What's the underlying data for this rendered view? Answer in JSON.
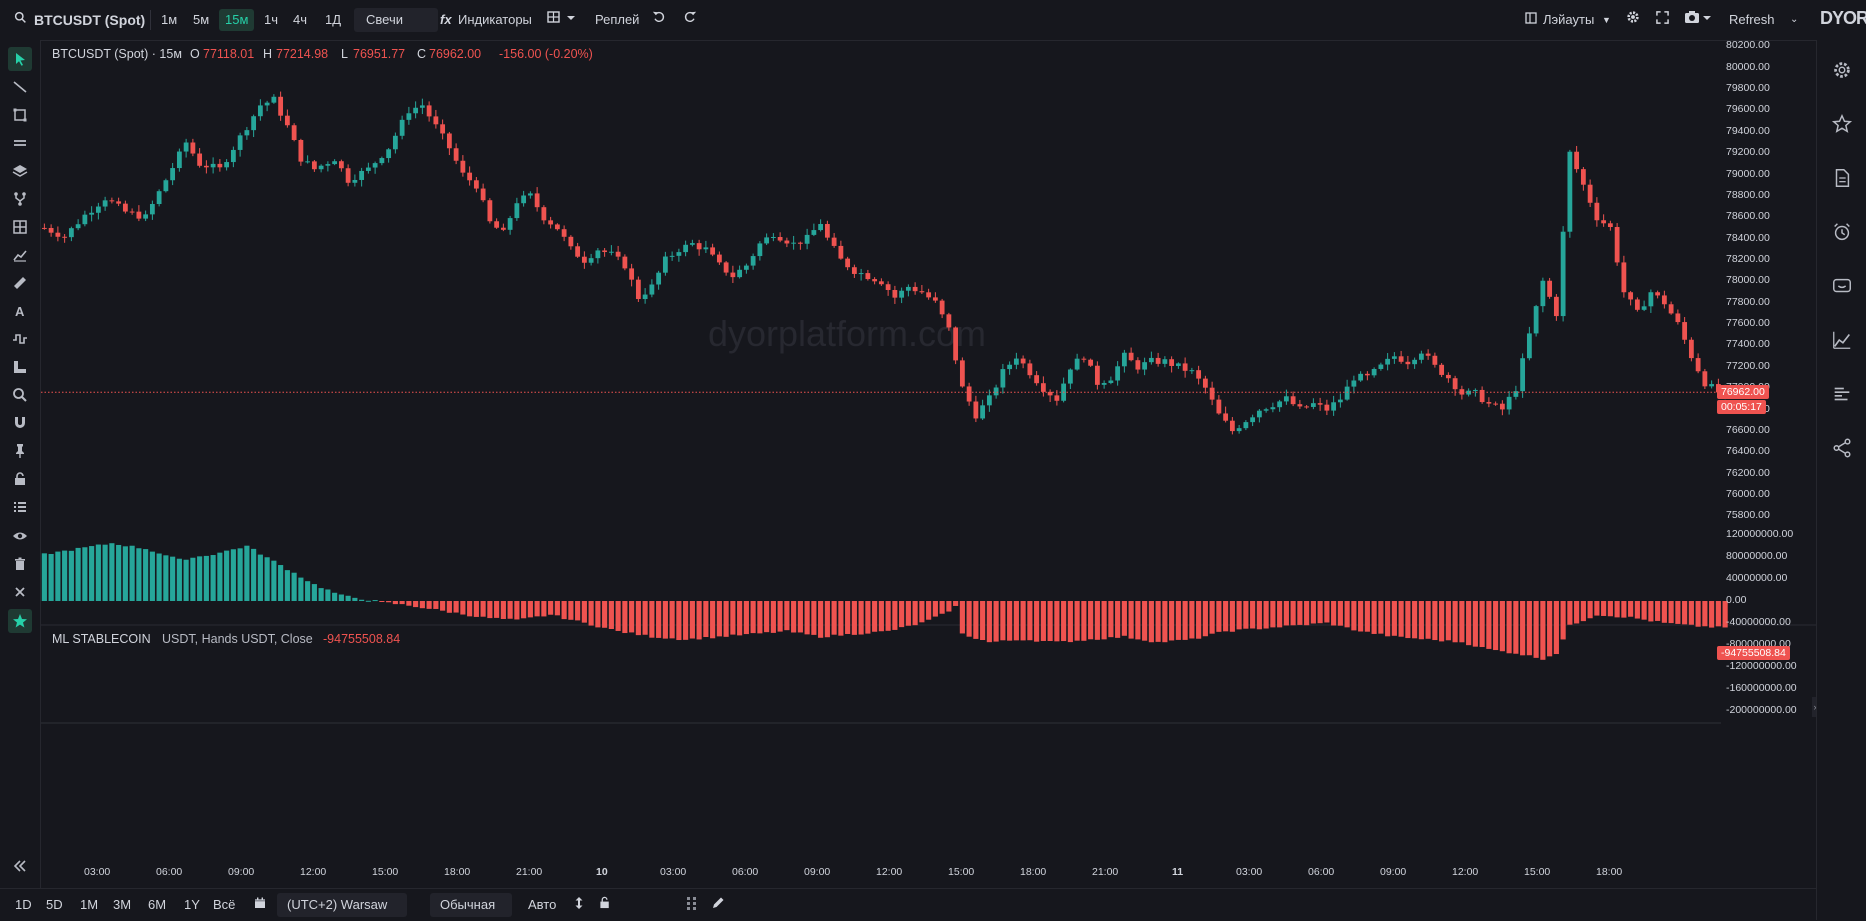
{
  "topbar": {
    "symbol": "BTCUSDT (Spot)",
    "timeframes": [
      "1м",
      "5м",
      "15м",
      "1ч",
      "4ч",
      "1Д"
    ],
    "active_timeframe": "15м",
    "chart_type": "Свечи",
    "indicators_label": "Индикаторы",
    "replay_label": "Реплей",
    "layouts_label": "Лэйауты",
    "refresh_label": "Refresh",
    "brand": "DYOR"
  },
  "legend": {
    "title": "BTCUSDT (Spot) · 15м",
    "o_label": "O",
    "o_value": "77118.01",
    "h_label": "H",
    "h_value": "77214.98",
    "l_label": "L",
    "l_value": "76951.77",
    "c_label": "C",
    "c_value": "76962.00",
    "change": "-156.00 (-0.20%)"
  },
  "watermark": "dyorplatform.com",
  "price_axis": {
    "labels": [
      "80200.00",
      "80000.00",
      "79800.00",
      "79600.00",
      "79400.00",
      "79200.00",
      "79000.00",
      "78800.00",
      "78600.00",
      "78400.00",
      "78200.00",
      "78000.00",
      "77800.00",
      "77600.00",
      "77400.00",
      "77200.00",
      "77000.00",
      "76800.00",
      "76600.00",
      "76400.00",
      "76200.00",
      "76000.00",
      "75800.00"
    ],
    "current_price": "76962.00",
    "countdown": "00:05:17"
  },
  "indicator": {
    "name": "ML STABLECOIN",
    "params": "USDT, Hands USDT, Close",
    "value": "-94755508.84",
    "axis_labels": [
      "120000000.00",
      "80000000.00",
      "40000000.00",
      "0.00",
      "-40000000.00",
      "-80000000.00",
      "-120000000.00",
      "-160000000.00",
      "-200000000.00"
    ],
    "current_value": "-94755508.84"
  },
  "time_axis": [
    "03:00",
    "06:00",
    "09:00",
    "12:00",
    "15:00",
    "18:00",
    "21:00",
    "10",
    "03:00",
    "06:00",
    "09:00",
    "12:00",
    "15:00",
    "18:00",
    "21:00",
    "11",
    "03:00",
    "06:00",
    "09:00",
    "12:00",
    "15:00",
    "18:00"
  ],
  "bottombar": {
    "ranges": [
      "1D",
      "5D",
      "1M",
      "3M",
      "6M",
      "1Y",
      "Всё"
    ],
    "timezone": "(UTC+2) Warsaw",
    "scale_mode": "Обычная",
    "auto_label": "Авто"
  },
  "colors": {
    "up": "#26a69a",
    "down": "#ef5350",
    "background": "#16171d",
    "accent": "#26d0a8"
  },
  "chart_data": {
    "type": "candlestick",
    "y_range": [
      75700,
      80250
    ],
    "indicator_range": [
      -210000000,
      130000000
    ],
    "price_path": [
      [
        0,
        78500
      ],
      [
        3,
        78420
      ],
      [
        6,
        78620
      ],
      [
        9,
        78780
      ],
      [
        12,
        78650
      ],
      [
        15,
        78600
      ],
      [
        18,
        78950
      ],
      [
        21,
        79300
      ],
      [
        23,
        79100
      ],
      [
        26,
        79050
      ],
      [
        29,
        79350
      ],
      [
        32,
        79650
      ],
      [
        34,
        79700
      ],
      [
        36,
        79450
      ],
      [
        38,
        79150
      ],
      [
        40,
        79050
      ],
      [
        43,
        79150
      ],
      [
        45,
        78950
      ],
      [
        48,
        79050
      ],
      [
        51,
        79250
      ],
      [
        54,
        79600
      ],
      [
        56,
        79650
      ],
      [
        58,
        79450
      ],
      [
        60,
        79250
      ],
      [
        62,
        79000
      ],
      [
        64,
        78900
      ],
      [
        66,
        78550
      ],
      [
        68,
        78450
      ],
      [
        70,
        78750
      ],
      [
        72,
        78800
      ],
      [
        74,
        78600
      ],
      [
        76,
        78500
      ],
      [
        78,
        78300
      ],
      [
        80,
        78200
      ],
      [
        82,
        78300
      ],
      [
        84,
        78250
      ],
      [
        86,
        78150
      ],
      [
        88,
        77850
      ],
      [
        90,
        77950
      ],
      [
        92,
        78200
      ],
      [
        94,
        78300
      ],
      [
        96,
        78350
      ],
      [
        98,
        78300
      ],
      [
        100,
        78150
      ],
      [
        102,
        78050
      ],
      [
        104,
        78150
      ],
      [
        106,
        78350
      ],
      [
        108,
        78450
      ],
      [
        111,
        78350
      ],
      [
        113,
        78400
      ],
      [
        115,
        78550
      ],
      [
        116,
        78400
      ],
      [
        118,
        78200
      ],
      [
        120,
        78100
      ],
      [
        122,
        78050
      ],
      [
        124,
        78000
      ],
      [
        126,
        77850
      ],
      [
        128,
        77950
      ],
      [
        130,
        77900
      ],
      [
        132,
        77800
      ],
      [
        134,
        77550
      ],
      [
        136,
        77000
      ],
      [
        138,
        76750
      ],
      [
        140,
        76900
      ],
      [
        142,
        77150
      ],
      [
        144,
        77300
      ],
      [
        146,
        77150
      ],
      [
        148,
        77000
      ],
      [
        150,
        76900
      ],
      [
        152,
        77200
      ],
      [
        154,
        77300
      ],
      [
        156,
        77050
      ],
      [
        158,
        77100
      ],
      [
        160,
        77300
      ],
      [
        162,
        77200
      ],
      [
        164,
        77250
      ],
      [
        166,
        77250
      ],
      [
        168,
        77200
      ],
      [
        170,
        77150
      ],
      [
        172,
        77000
      ],
      [
        174,
        76750
      ],
      [
        176,
        76600
      ],
      [
        178,
        76700
      ],
      [
        180,
        76800
      ],
      [
        182,
        76850
      ],
      [
        184,
        76900
      ],
      [
        186,
        76800
      ],
      [
        188,
        76850
      ],
      [
        190,
        76800
      ],
      [
        192,
        76900
      ],
      [
        194,
        77100
      ],
      [
        196,
        77100
      ],
      [
        198,
        77200
      ],
      [
        200,
        77300
      ],
      [
        202,
        77250
      ],
      [
        204,
        77350
      ],
      [
        206,
        77200
      ],
      [
        208,
        77100
      ],
      [
        210,
        76950
      ],
      [
        212,
        76950
      ],
      [
        214,
        76850
      ],
      [
        216,
        76800
      ],
      [
        218,
        77000
      ],
      [
        220,
        77500
      ],
      [
        222,
        78000
      ],
      [
        224,
        77700
      ],
      [
        226,
        79200
      ],
      [
        228,
        78900
      ],
      [
        230,
        78600
      ],
      [
        232,
        78500
      ],
      [
        234,
        77900
      ],
      [
        236,
        77700
      ],
      [
        238,
        77900
      ],
      [
        240,
        77800
      ],
      [
        242,
        77600
      ],
      [
        244,
        77300
      ],
      [
        246,
        77050
      ],
      [
        248,
        76962
      ]
    ],
    "indicator_path": [
      [
        0,
        85
      ],
      [
        10,
        105
      ],
      [
        15,
        95
      ],
      [
        20,
        75
      ],
      [
        25,
        85
      ],
      [
        30,
        100
      ],
      [
        35,
        65
      ],
      [
        40,
        30
      ],
      [
        44,
        10
      ],
      [
        48,
        2
      ],
      [
        50,
        -2
      ],
      [
        55,
        -10
      ],
      [
        60,
        -20
      ],
      [
        65,
        -30
      ],
      [
        70,
        -35
      ],
      [
        75,
        -25
      ],
      [
        80,
        -40
      ],
      [
        85,
        -55
      ],
      [
        90,
        -65
      ],
      [
        95,
        -70
      ],
      [
        100,
        -65
      ],
      [
        105,
        -60
      ],
      [
        110,
        -55
      ],
      [
        115,
        -65
      ],
      [
        120,
        -60
      ],
      [
        125,
        -55
      ],
      [
        130,
        -40
      ],
      [
        133,
        -25
      ],
      [
        135,
        -10
      ],
      [
        136,
        -60
      ],
      [
        140,
        -75
      ],
      [
        145,
        -70
      ],
      [
        150,
        -75
      ],
      [
        155,
        -70
      ],
      [
        160,
        -65
      ],
      [
        165,
        -75
      ],
      [
        170,
        -70
      ],
      [
        175,
        -55
      ],
      [
        180,
        -50
      ],
      [
        185,
        -45
      ],
      [
        190,
        -40
      ],
      [
        195,
        -55
      ],
      [
        200,
        -65
      ],
      [
        205,
        -70
      ],
      [
        210,
        -75
      ],
      [
        213,
        -85
      ],
      [
        215,
        -90
      ],
      [
        218,
        -95
      ],
      [
        220,
        -100
      ],
      [
        222,
        -105
      ],
      [
        224,
        -95
      ],
      [
        226,
        -45
      ],
      [
        230,
        -25
      ],
      [
        235,
        -30
      ],
      [
        240,
        -40
      ],
      [
        244,
        -45
      ],
      [
        248,
        -48
      ]
    ]
  }
}
